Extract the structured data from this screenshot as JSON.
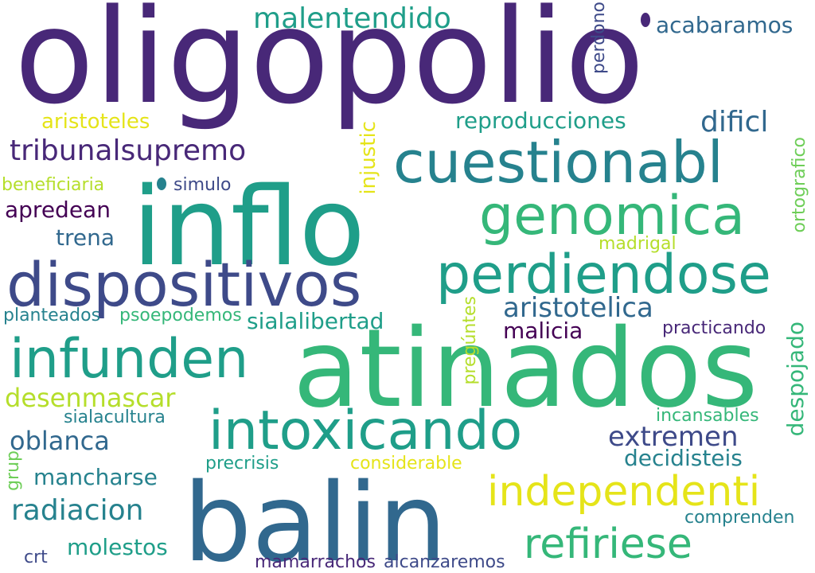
{
  "colors": {
    "background": "#ffffff",
    "dark_purple": "#440154",
    "indigo": "#482878",
    "slate_blue": "#3e4a89",
    "blue": "#31688e",
    "teal": "#26828e",
    "teal_green": "#1f9e89",
    "green": "#35b779",
    "light_green": "#6ece58",
    "lime": "#b5de2b",
    "yellow": "#e5e419"
  },
  "words": {
    "oligopolio": "oligopolio",
    "inflo": "inflo",
    "atinados": "atinados",
    "balin": "balin",
    "dispositivos": "dispositivos",
    "cuestionabl": "cuestionabl",
    "perdiendose": "perdiendose",
    "infunden": "infunden",
    "intoxicando": "intoxicando",
    "genomica": "genomica",
    "independenti": "independenti",
    "refiriese": "refiriese",
    "malentendido": "malentendido",
    "tribunalsupremo": "tribunalsupremo",
    "reproducciones": "reproducciones",
    "dificl": "dificl",
    "acabaramos": "acabaramos",
    "perdono": "perdono",
    "aristoteles": "aristoteles",
    "injustic": "injustic",
    "ortografico": "ortografico",
    "beneficiaria": "beneficiaria",
    "simulo": "simulo",
    "apredean": "apredean",
    "trena": "trena",
    "madrigal": "madrigal",
    "aristotelica": "aristotelica",
    "planteados": "planteados",
    "psoepodemos": "psoepodemos",
    "sialalibertad": "sialalibertad",
    "malicia": "malicia",
    "practicando": "practicando",
    "pregúntes": "pregúntes",
    "despojado": "despojado",
    "desenmascar": "desenmascar",
    "sialacultura": "sialacultura",
    "incansables": "incansables",
    "oblanca": "oblanca",
    "extremen": "extremen",
    "decidisteis": "decidisteis",
    "precrisis": "precrisis",
    "considerable": "considerable",
    "grup": "grup",
    "mancharse": "mancharse",
    "radiacion": "radiacion",
    "comprenden": "comprenden",
    "molestos": "molestos",
    "crt": "crt",
    "mamarrachos": "mamarrachos",
    "alcanzaremos": "alcanzaremos"
  }
}
